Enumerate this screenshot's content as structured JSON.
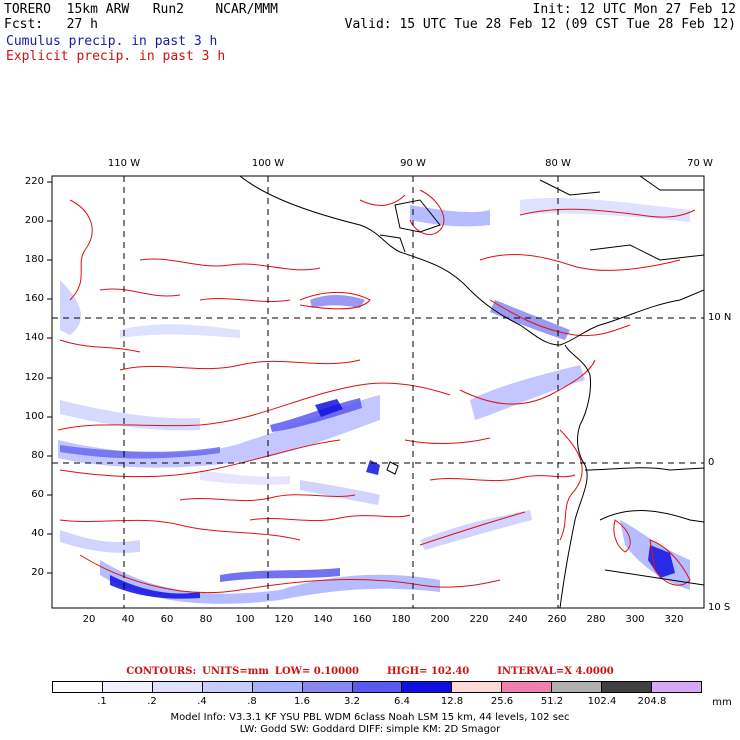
{
  "header": {
    "model": "TORERO  15km ARW   Run2    NCAR/MMM",
    "init": "Init: 12 UTC Mon 27 Feb 12",
    "fcst": "Fcst:   27 h",
    "valid": "Valid: 15 UTC Tue 28 Feb 12 (09 CST Tue 28 Feb 12)",
    "cumulus": "Cumulus precip. in past 3 h",
    "explicit": "Explicit precip. in past 3 h"
  },
  "axes": {
    "lon_labels": [
      "110 W",
      "100 W",
      "90 W",
      "80 W",
      "70 W"
    ],
    "lat_labels": [
      "10 N",
      "0",
      "10 S"
    ],
    "y_ticks": [
      "220",
      "200",
      "180",
      "160",
      "140",
      "120",
      "100",
      "80",
      "60",
      "40",
      "20"
    ],
    "x_ticks": [
      "20",
      "40",
      "60",
      "80",
      "100",
      "120",
      "140",
      "160",
      "180",
      "200",
      "220",
      "240",
      "260",
      "280",
      "300",
      "320"
    ]
  },
  "contours": {
    "label": "CONTOURS:",
    "units": "UNITS=mm",
    "low": "LOW= 0.10000",
    "high": "HIGH= 102.40",
    "interval": "INTERVAL=X  4.0000"
  },
  "colorbar": {
    "labels": [
      ".1",
      ".2",
      ".4",
      ".8",
      "1.6",
      "3.2",
      "6.4",
      "12.8",
      "25.6",
      "51.2",
      "102.4",
      "204.8"
    ],
    "unit": "mm",
    "colors": [
      "#ffffff",
      "#f2f2ff",
      "#e0e0ff",
      "#c8ccff",
      "#a8b0ff",
      "#8888f0",
      "#5a5af0",
      "#1010e0",
      "#ffd8d8",
      "#f080b0",
      "#b0b0b0",
      "#404040",
      "#d8a8f8"
    ]
  },
  "footer": {
    "line1": "Model Info: V3.3.1    KF      YSU PBL   WDM 6class  Noah LSM  15 km,    44 levels,   102 sec",
    "line2": "LW: Godd SW: Goddard DIFF: simple KM: 2D Smagor"
  }
}
